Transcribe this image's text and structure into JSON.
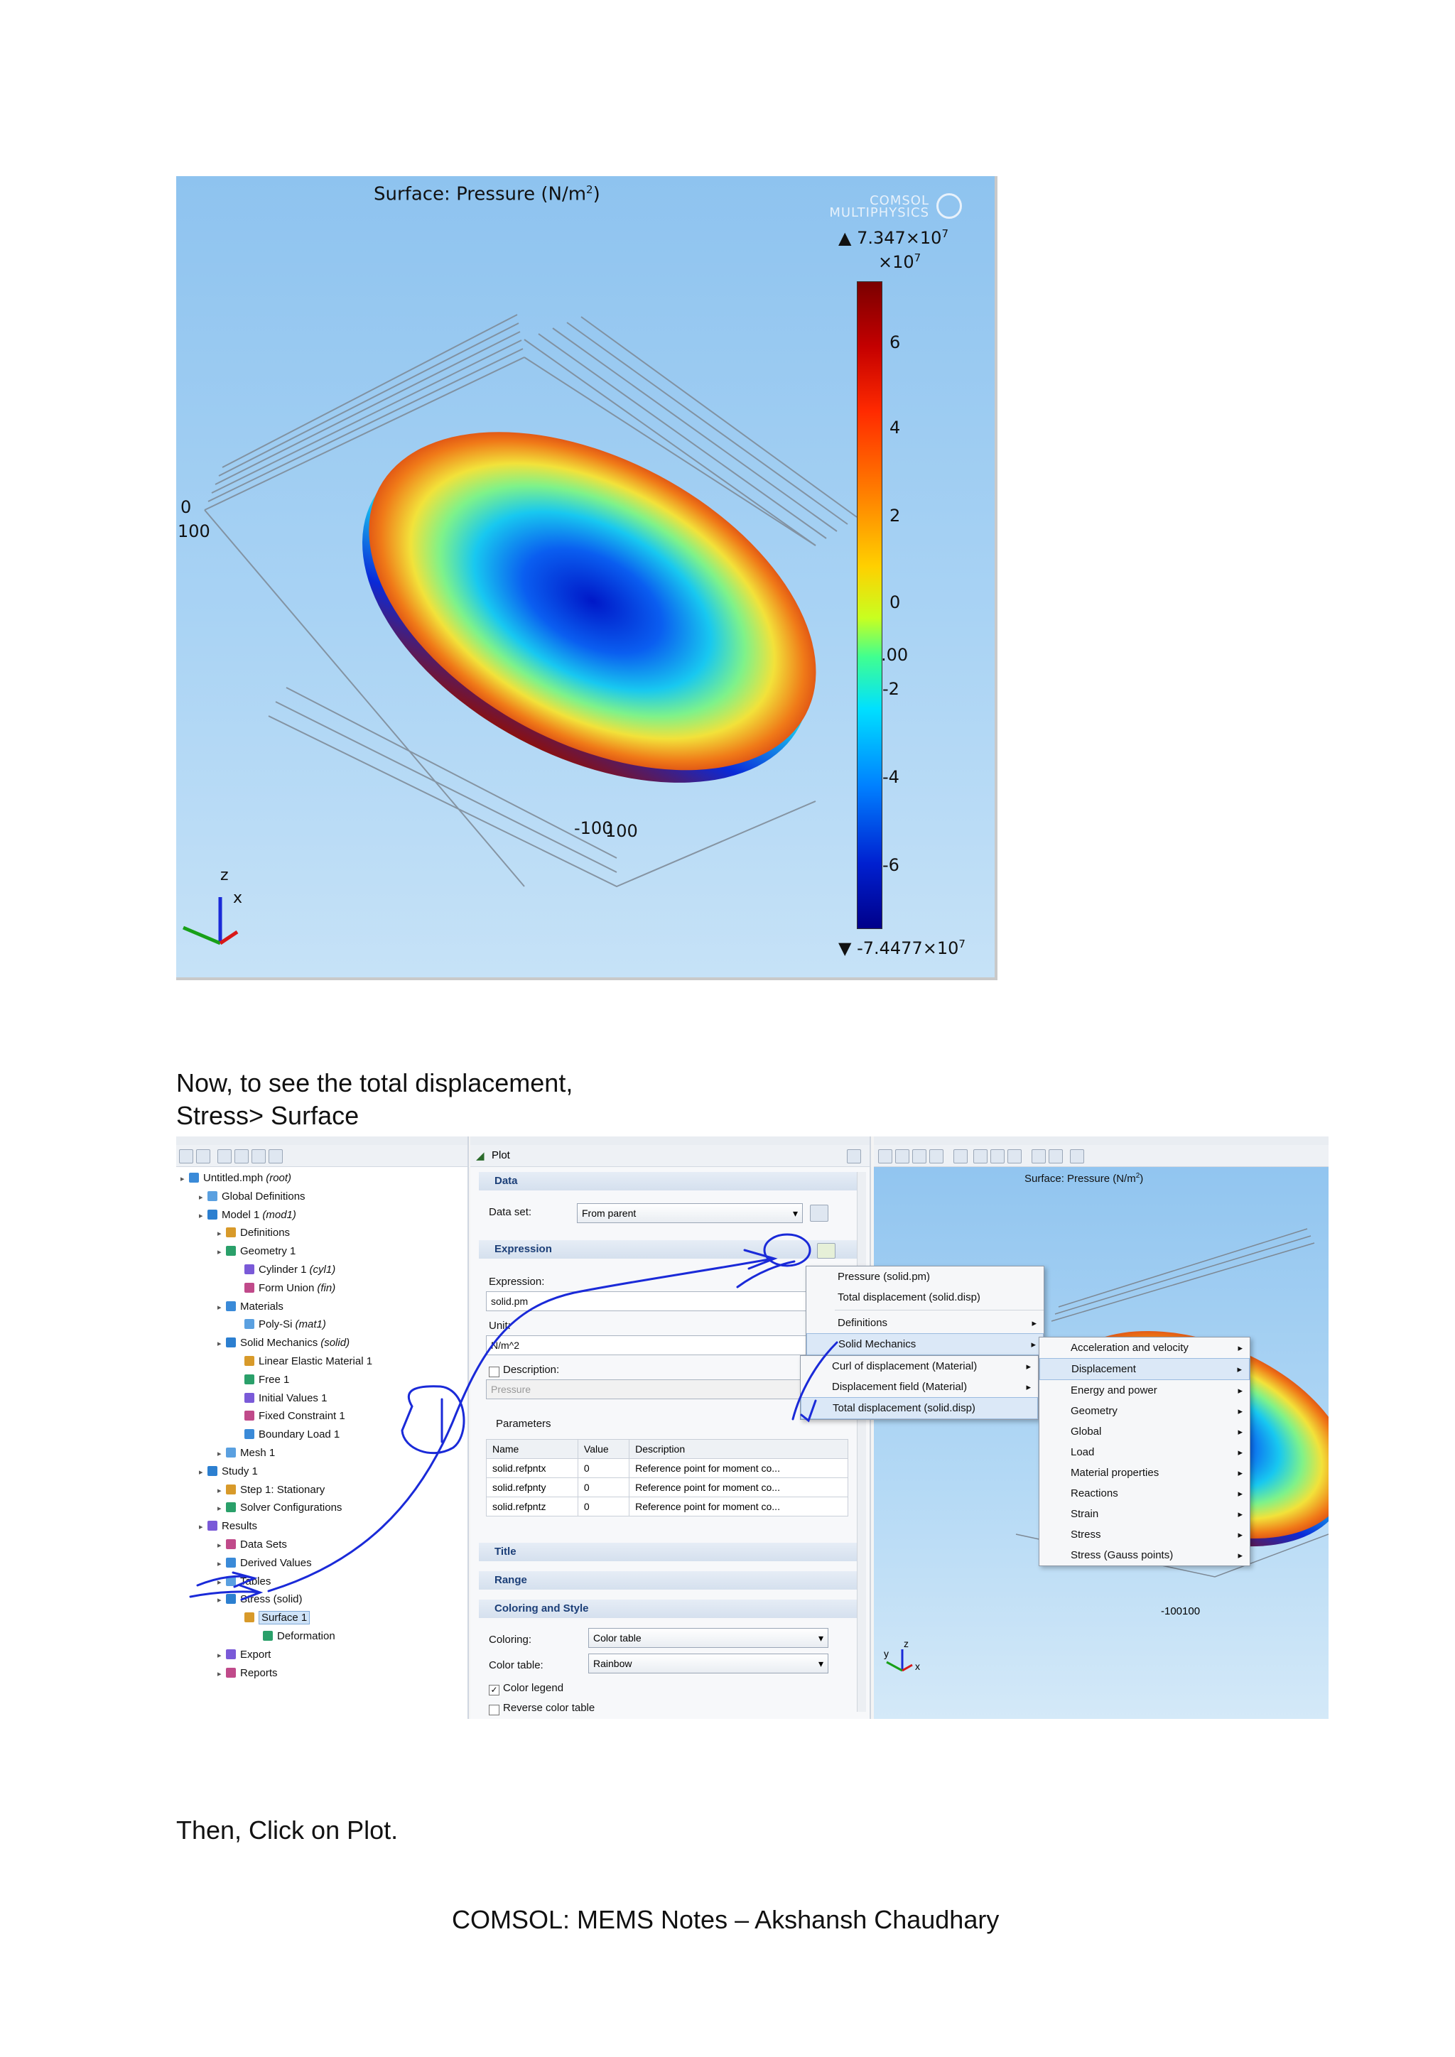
{
  "figure1": {
    "title": "Surface: Pressure (N/m",
    "title_sup": "2",
    "title_close": ")",
    "watermark": "COMSOL MULTIPHYSICS",
    "max_label": "▲ 7.347×10",
    "max_exp": "7",
    "scale_label": "×10",
    "scale_exp": "7",
    "min_label": "▼ -7.4477×10",
    "min_exp": "7",
    "colorbar_ticks": [
      "6",
      "4",
      "2",
      "0",
      "-2",
      "-4",
      "-6"
    ],
    "axis_text": [
      "0",
      "100",
      "-100",
      "100",
      ".00"
    ],
    "triad": {
      "z": "z",
      "x": "x"
    }
  },
  "text": {
    "intro_line1": "Now, to see the total displacement,",
    "intro_line2": "Stress> Surface",
    "then": "Then, Click on Plot.",
    "footer": "COMSOL: MEMS Notes – Akshansh Chaudhary"
  },
  "figure2": {
    "tree": [
      {
        "label": "Untitled.mph",
        "italic": "(root)",
        "indent": 0
      },
      {
        "label": "Global Definitions",
        "italic": "",
        "indent": 1
      },
      {
        "label": "Model 1",
        "italic": "(mod1)",
        "indent": 1
      },
      {
        "label": "Definitions",
        "italic": "",
        "indent": 2
      },
      {
        "label": "Geometry 1",
        "italic": "",
        "indent": 2
      },
      {
        "label": "Cylinder 1",
        "italic": "(cyl1)",
        "indent": 3
      },
      {
        "label": "Form Union",
        "italic": "(fin)",
        "indent": 3
      },
      {
        "label": "Materials",
        "italic": "",
        "indent": 2
      },
      {
        "label": "Poly-Si",
        "italic": "(mat1)",
        "indent": 3
      },
      {
        "label": "Solid Mechanics",
        "italic": "(solid)",
        "indent": 2
      },
      {
        "label": "Linear Elastic Material 1",
        "italic": "",
        "indent": 3
      },
      {
        "label": "Free 1",
        "italic": "",
        "indent": 3
      },
      {
        "label": "Initial Values 1",
        "italic": "",
        "indent": 3
      },
      {
        "label": "Fixed Constraint 1",
        "italic": "",
        "indent": 3
      },
      {
        "label": "Boundary Load 1",
        "italic": "",
        "indent": 3
      },
      {
        "label": "Mesh 1",
        "italic": "",
        "indent": 2
      },
      {
        "label": "Study 1",
        "italic": "",
        "indent": 1
      },
      {
        "label": "Step 1: Stationary",
        "italic": "",
        "indent": 2
      },
      {
        "label": "Solver Configurations",
        "italic": "",
        "indent": 2
      },
      {
        "label": "Results",
        "italic": "",
        "indent": 1
      },
      {
        "label": "Data Sets",
        "italic": "",
        "indent": 2
      },
      {
        "label": "Derived Values",
        "italic": "",
        "indent": 2
      },
      {
        "label": "Tables",
        "italic": "",
        "indent": 2
      },
      {
        "label": "Stress (solid)",
        "italic": "",
        "indent": 2
      },
      {
        "label": "Surface 1",
        "italic": "",
        "indent": 3
      },
      {
        "label": "Deformation",
        "italic": "",
        "indent": 4
      },
      {
        "label": "Export",
        "italic": "",
        "indent": 2
      },
      {
        "label": "Reports",
        "italic": "",
        "indent": 2
      }
    ],
    "settings": {
      "header": "Plot",
      "data_section": "Data",
      "data_set_label": "Data set:",
      "data_set_value": "From parent",
      "expression_section": "Expression",
      "expression_label": "Expression:",
      "expression_value": "solid.pm",
      "unit_label": "Unit:",
      "unit_value": "N/m^2",
      "description_label": "Description:",
      "description_value": "Pressure",
      "parameters_label": "Parameters",
      "param_headers": [
        "Name",
        "Value",
        "Description"
      ],
      "params": [
        [
          "solid.refpntx",
          "0",
          "Reference point for moment co..."
        ],
        [
          "solid.refpnty",
          "0",
          "Reference point for moment co..."
        ],
        [
          "solid.refpntz",
          "0",
          "Reference point for moment co..."
        ]
      ],
      "title_section": "Title",
      "range_section": "Range",
      "coloring_section": "Coloring and Style",
      "coloring_label": "Coloring:",
      "coloring_value": "Color table",
      "color_table_label": "Color table:",
      "color_table_value": "Rainbow",
      "color_legend_label": "Color legend",
      "reverse_label": "Reverse color table"
    },
    "menu1": [
      "Pressure (solid.pm)",
      "Total displacement (solid.disp)",
      "Definitions",
      "Solid Mechanics"
    ],
    "menu2": [
      "Curl of displacement (Material)",
      "Displacement field (Material)",
      "Total displacement (solid.disp)"
    ],
    "menu3": [
      "Acceleration and velocity",
      "Displacement",
      "Energy and power",
      "Geometry",
      "Global",
      "Load",
      "Material properties",
      "Reactions",
      "Strain",
      "Stress",
      "Stress (Gauss points)"
    ],
    "graphics": {
      "title": "Surface: Pressure (N/m",
      "title_sup": "2",
      "title_close": ")",
      "axis_text": "-100100",
      "triad": {
        "y": "y",
        "z": "z",
        "x": "x"
      }
    }
  },
  "colors": {
    "annotation_pen": "#1a2ad8",
    "selection": "#cfe3f8",
    "section_text": "#1c3f78"
  }
}
